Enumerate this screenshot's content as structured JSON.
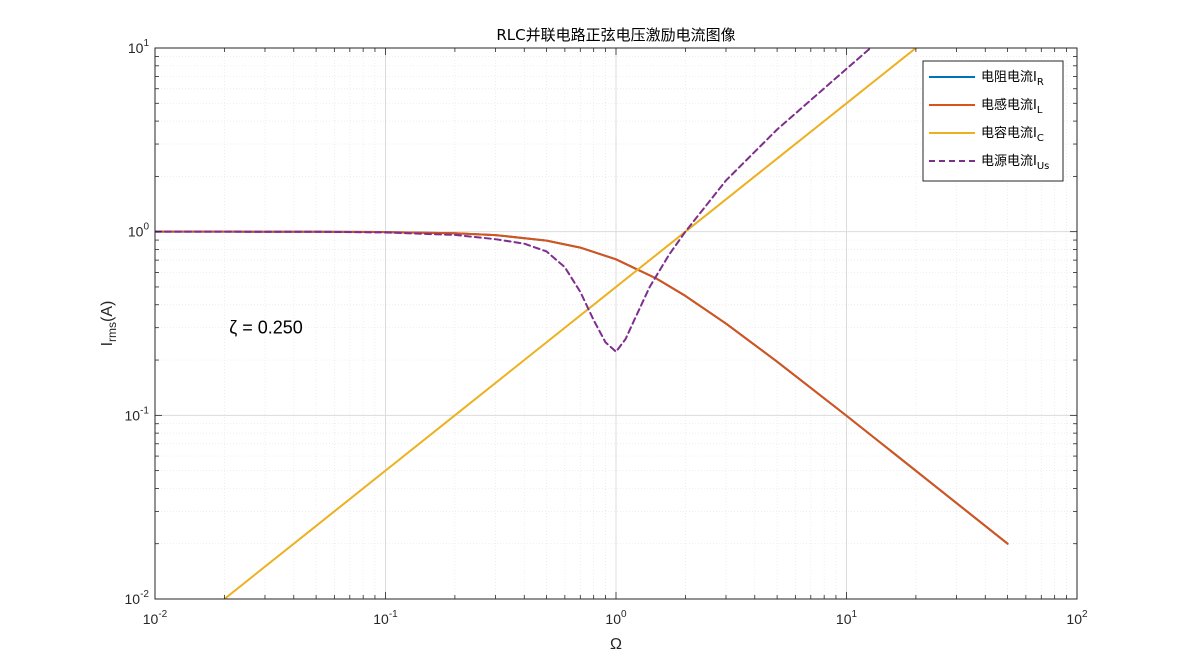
{
  "chart_data": {
    "type": "line",
    "title": "RLC并联电路正弦电压激励电流图像",
    "xlabel": "Ω",
    "ylabel": {
      "main": "I",
      "sub": "rms",
      "suffix": "(A)"
    },
    "x_scale": "log",
    "y_scale": "log",
    "xlim": [
      0.01,
      100
    ],
    "ylim": [
      0.01,
      10
    ],
    "grid": true,
    "minor_grid": true,
    "legend_position": "top-right",
    "x_ticks": [
      {
        "base": "10",
        "exp": "-2"
      },
      {
        "base": "10",
        "exp": "-1"
      },
      {
        "base": "10",
        "exp": "0"
      },
      {
        "base": "10",
        "exp": "1"
      },
      {
        "base": "10",
        "exp": "2"
      }
    ],
    "y_ticks": [
      {
        "base": "10",
        "exp": "-2"
      },
      {
        "base": "10",
        "exp": "-1"
      },
      {
        "base": "10",
        "exp": "0"
      },
      {
        "base": "10",
        "exp": "1"
      }
    ],
    "annotation": "ζ = 0.250",
    "zeta": 0.25,
    "series": [
      {
        "name": "电阻电流",
        "sub": "R",
        "color": "#0072BD",
        "dash": false,
        "x": [
          0.01,
          0.02,
          0.05,
          0.1,
          0.2,
          0.3,
          0.5,
          0.7,
          1.0,
          1.5,
          2,
          3,
          5,
          10,
          20,
          50
        ],
        "y": [
          1.0,
          1.0,
          0.999,
          0.995,
          0.981,
          0.958,
          0.894,
          0.819,
          0.707,
          0.555,
          0.447,
          0.316,
          0.196,
          0.0995,
          0.0499,
          0.02
        ]
      },
      {
        "name": "电感电流",
        "sub": "L",
        "color": "#D95319",
        "dash": false,
        "x": [
          0.01,
          0.02,
          0.05,
          0.1,
          0.2,
          0.3,
          0.5,
          0.7,
          1.0,
          1.5,
          2,
          3,
          5,
          10,
          20,
          50
        ],
        "y": [
          1.0,
          1.0,
          0.999,
          0.995,
          0.981,
          0.958,
          0.894,
          0.819,
          0.707,
          0.555,
          0.447,
          0.316,
          0.196,
          0.0995,
          0.0499,
          0.02
        ]
      },
      {
        "name": "电容电流",
        "sub": "C",
        "color": "#EDB120",
        "dash": false,
        "x": [
          0.02,
          0.05,
          0.1,
          0.2,
          0.5,
          1.0,
          2,
          5,
          10,
          20
        ],
        "y": [
          0.01,
          0.025,
          0.05,
          0.1,
          0.25,
          0.5,
          1.0,
          2.5,
          5.0,
          10.0
        ]
      },
      {
        "name": "电源电流",
        "sub": "Us",
        "color": "#7E2F8E",
        "dash": true,
        "x": [
          0.01,
          0.02,
          0.05,
          0.1,
          0.2,
          0.3,
          0.4,
          0.5,
          0.6,
          0.7,
          0.8,
          0.9,
          1.0,
          1.1,
          1.2,
          1.4,
          1.7,
          2,
          3,
          5,
          10,
          20
        ],
        "y": [
          1.0,
          1.0,
          0.999,
          0.99,
          0.96,
          0.91,
          0.86,
          0.78,
          0.64,
          0.47,
          0.33,
          0.25,
          0.222,
          0.26,
          0.33,
          0.5,
          0.75,
          1.0,
          1.9,
          3.6,
          7.7,
          16.4
        ]
      }
    ]
  }
}
